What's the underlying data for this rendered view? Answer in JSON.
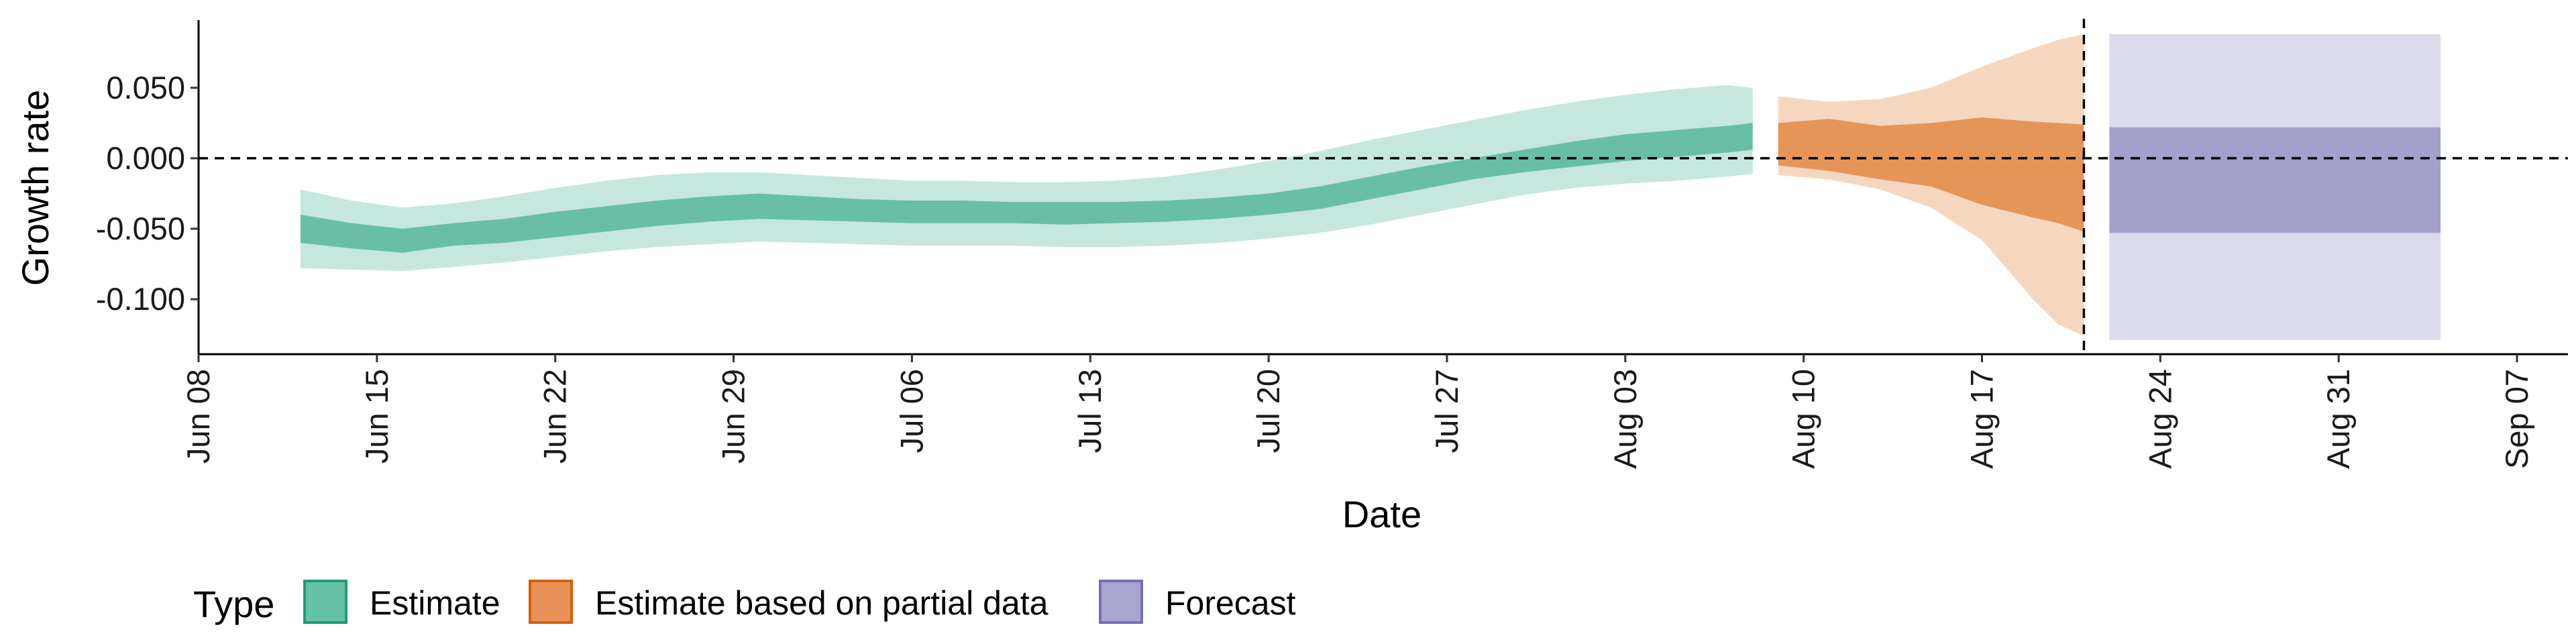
{
  "chart_data": {
    "type": "area",
    "xlabel": "Date",
    "ylabel": "Growth rate",
    "x_ticks": [
      "Jun 08",
      "Jun 15",
      "Jun 22",
      "Jun 29",
      "Jul 06",
      "Jul 13",
      "Jul 20",
      "Jul 27",
      "Aug 03",
      "Aug 10",
      "Aug 17",
      "Aug 24",
      "Aug 31",
      "Sep 07"
    ],
    "x_tick_dates": [
      "2020-06-08",
      "2020-06-15",
      "2020-06-22",
      "2020-06-29",
      "2020-07-06",
      "2020-07-13",
      "2020-07-20",
      "2020-07-27",
      "2020-08-03",
      "2020-08-10",
      "2020-08-17",
      "2020-08-24",
      "2020-08-31",
      "2020-09-07"
    ],
    "y_ticks": [
      0.05,
      0.0,
      -0.05,
      -0.1
    ],
    "y_tick_labels": [
      "0.050",
      "0.000",
      "-0.050",
      "-0.100"
    ],
    "xlim": [
      "2020-06-08",
      "2020-09-09"
    ],
    "ylim": [
      -0.139,
      0.098
    ],
    "grid": false,
    "hline_y": 0.0,
    "vline_date": "2020-08-21",
    "legend": {
      "title": "Type",
      "position": "bottom-left",
      "entries": [
        {
          "label": "Estimate",
          "color": "#66C2A5",
          "border": "#1B9E77"
        },
        {
          "label": "Estimate based on partial data",
          "color": "#E8925A",
          "border": "#D95F02"
        },
        {
          "label": "Forecast",
          "color": "#A9A5D1",
          "border": "#7570B3"
        }
      ]
    },
    "series": [
      {
        "name": "Estimate",
        "color": "#1B9E77",
        "dates": [
          "2020-06-12",
          "2020-06-14",
          "2020-06-16",
          "2020-06-18",
          "2020-06-20",
          "2020-06-22",
          "2020-06-24",
          "2020-06-26",
          "2020-06-28",
          "2020-06-30",
          "2020-07-02",
          "2020-07-04",
          "2020-07-06",
          "2020-07-08",
          "2020-07-10",
          "2020-07-12",
          "2020-07-14",
          "2020-07-16",
          "2020-07-18",
          "2020-07-20",
          "2020-07-22",
          "2020-07-24",
          "2020-07-26",
          "2020-07-28",
          "2020-07-30",
          "2020-08-01",
          "2020-08-03",
          "2020-08-05",
          "2020-08-07",
          "2020-08-08"
        ],
        "lower_90": [
          -0.078,
          -0.079,
          -0.08,
          -0.077,
          -0.074,
          -0.07,
          -0.066,
          -0.063,
          -0.061,
          -0.059,
          -0.06,
          -0.061,
          -0.062,
          -0.062,
          -0.062,
          -0.063,
          -0.063,
          -0.062,
          -0.06,
          -0.057,
          -0.053,
          -0.047,
          -0.04,
          -0.033,
          -0.026,
          -0.021,
          -0.018,
          -0.016,
          -0.013,
          -0.011
        ],
        "lower_50": [
          -0.06,
          -0.064,
          -0.067,
          -0.062,
          -0.06,
          -0.056,
          -0.052,
          -0.048,
          -0.045,
          -0.043,
          -0.044,
          -0.045,
          -0.046,
          -0.046,
          -0.046,
          -0.047,
          -0.046,
          -0.045,
          -0.043,
          -0.04,
          -0.036,
          -0.029,
          -0.022,
          -0.015,
          -0.01,
          -0.006,
          -0.002,
          0.001,
          0.004,
          0.006
        ],
        "upper_50": [
          -0.04,
          -0.046,
          -0.05,
          -0.046,
          -0.043,
          -0.038,
          -0.034,
          -0.03,
          -0.027,
          -0.025,
          -0.027,
          -0.029,
          -0.03,
          -0.03,
          -0.031,
          -0.031,
          -0.031,
          -0.03,
          -0.028,
          -0.025,
          -0.02,
          -0.013,
          -0.006,
          0.0,
          0.006,
          0.012,
          0.017,
          0.02,
          0.023,
          0.025
        ],
        "upper_90": [
          -0.022,
          -0.03,
          -0.035,
          -0.032,
          -0.027,
          -0.021,
          -0.016,
          -0.012,
          -0.01,
          -0.01,
          -0.012,
          -0.014,
          -0.016,
          -0.016,
          -0.017,
          -0.017,
          -0.016,
          -0.013,
          -0.008,
          -0.002,
          0.005,
          0.013,
          0.02,
          0.027,
          0.034,
          0.04,
          0.045,
          0.049,
          0.052,
          0.05
        ]
      },
      {
        "name": "Estimate based on partial data",
        "color": "#D95F02",
        "dates": [
          "2020-08-09",
          "2020-08-11",
          "2020-08-13",
          "2020-08-15",
          "2020-08-17",
          "2020-08-19",
          "2020-08-20",
          "2020-08-21"
        ],
        "lower_90": [
          -0.012,
          -0.015,
          -0.022,
          -0.035,
          -0.058,
          -0.1,
          -0.118,
          -0.126
        ],
        "lower_50": [
          -0.005,
          -0.009,
          -0.015,
          -0.02,
          -0.033,
          -0.042,
          -0.046,
          -0.052
        ],
        "upper_50": [
          0.025,
          0.028,
          0.023,
          0.025,
          0.029,
          0.026,
          0.025,
          0.024
        ],
        "upper_90": [
          0.044,
          0.04,
          0.042,
          0.05,
          0.065,
          0.078,
          0.084,
          0.088
        ]
      },
      {
        "name": "Forecast",
        "color": "#7570B3",
        "dates": [
          "2020-08-22",
          "2020-09-04"
        ],
        "lower_90": [
          -0.129,
          -0.129
        ],
        "lower_50": [
          -0.053,
          -0.053
        ],
        "upper_50": [
          0.022,
          0.022
        ],
        "upper_90": [
          0.088,
          0.088
        ]
      }
    ]
  }
}
